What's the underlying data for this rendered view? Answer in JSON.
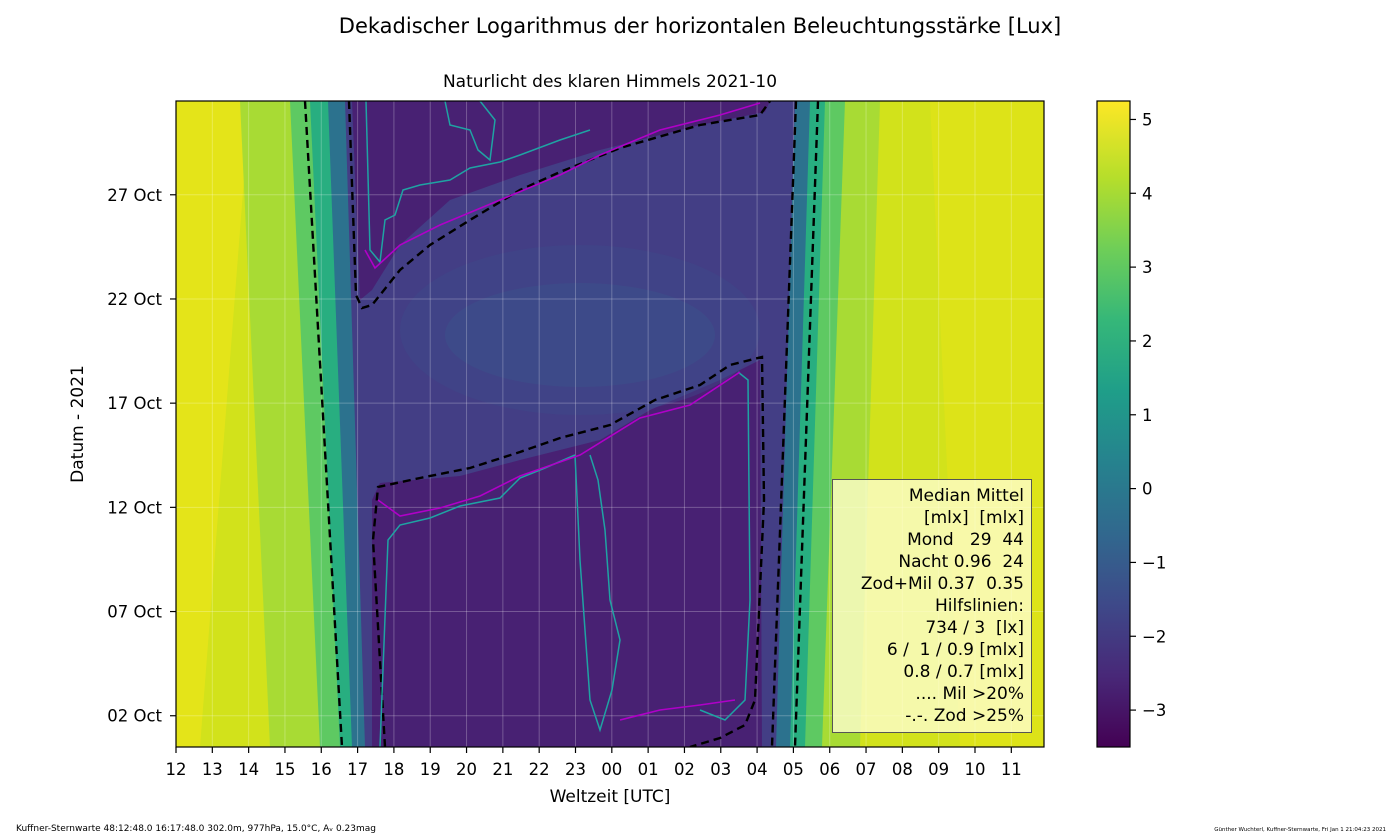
{
  "chart_data": {
    "type": "heatmap",
    "title": "Dekadischer Logarithmus der horizontalen Beleuchtungsstärke [Lux]",
    "subtitle": "Naturlicht des klaren Himmels 2021-10",
    "xlabel": "Weltzeit [UTC]",
    "ylabel": "Datum - 2021",
    "x_ticks": [
      "12",
      "13",
      "14",
      "15",
      "16",
      "17",
      "18",
      "19",
      "20",
      "21",
      "22",
      "23",
      "00",
      "01",
      "02",
      "03",
      "04",
      "05",
      "06",
      "07",
      "08",
      "09",
      "10",
      "11"
    ],
    "y_ticks": [
      "02 Oct",
      "07 Oct",
      "12 Oct",
      "17 Oct",
      "22 Oct",
      "27 Oct"
    ],
    "y_tick_days": [
      2,
      7,
      12,
      17,
      22,
      27
    ],
    "xlim_hours": [
      12,
      35.9
    ],
    "ylim_days": [
      0.5,
      31.5
    ],
    "colorbar_ticks": [
      "5",
      "4",
      "3",
      "2",
      "1",
      "0",
      "−1",
      "−2",
      "−3"
    ],
    "colorbar_values": [
      5,
      4,
      3,
      2,
      1,
      0,
      -1,
      -2,
      -3
    ],
    "colorbar_range": [
      -3.5,
      5.25
    ],
    "grid": true,
    "dusk_edge": {
      "day_start": 0.5,
      "day_end": 31.5,
      "hour_start": 16.6,
      "hour_end": 15.65
    },
    "dawn_edge": {
      "day_start": 0.5,
      "day_end": 31.5,
      "hour_start": 28.9,
      "hour_end": 29.2
    }
  },
  "colors": {
    "viridis": [
      "#440154",
      "#482878",
      "#3e4989",
      "#31688e",
      "#26828e",
      "#1f9e89",
      "#35b779",
      "#6ece58",
      "#b5de2b",
      "#fde725"
    ],
    "legend_bg": "#ffffd2",
    "contour_dashed": "#000000",
    "contour_moon": "#1fa3a3",
    "contour_magenta": "#b000c8"
  },
  "legend": {
    "lines": [
      "Median Mittel",
      "[mlx]  [mlx]",
      "Mond   29  44",
      "Nacht 0.96  24",
      "Zod+Mil 0.37  0.35",
      "Hilfslinien:",
      "734 / 3  [lx]",
      "6 /  1 / 0.9 [mlx]",
      "0.8 / 0.7 [mlx]",
      ".... Mil >20%",
      "-.-. Zod >25%"
    ]
  },
  "footer": {
    "left": "Kuffner-Sternwarte 48:12:48.0 16:17:48.0 302.0m,  977hPa, 15.0°C, Aᵥ 0.23mag",
    "right": "Günther Wuchterl, Kuffner-Sternwarte, Fri Jan  1 21:04:23 2021"
  }
}
